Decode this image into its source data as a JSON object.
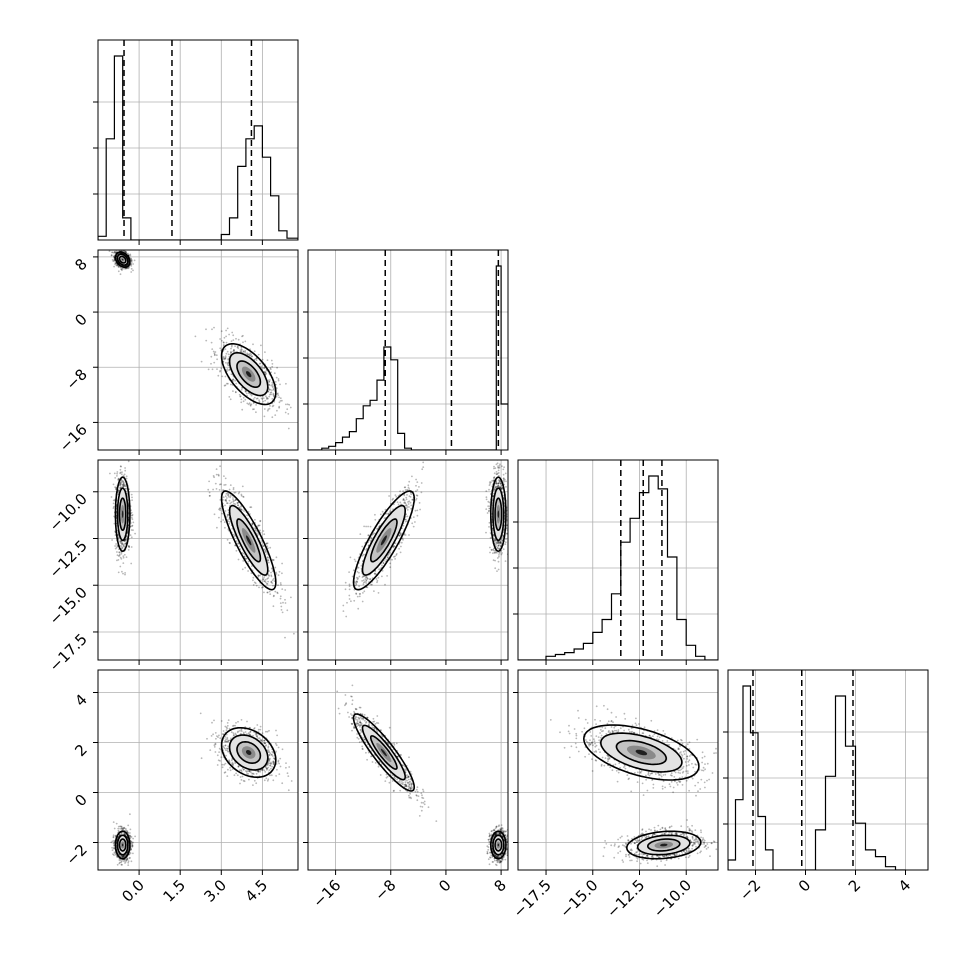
{
  "chart_data": {
    "type": "corner",
    "grid": true,
    "parameters": [
      {
        "ticks": [
          0.0,
          1.5,
          3.0,
          4.5
        ],
        "tick_labels": [
          "0.0",
          "1.5",
          "3.0",
          "4.5"
        ],
        "range": [
          -1.5,
          5.8
        ],
        "quantiles": [
          -0.55,
          1.2,
          4.1
        ],
        "hist": {
          "edges": [
            -1.5,
            -1.2,
            -0.9,
            -0.6,
            -0.3,
            0.0,
            0.3,
            2.7,
            3.0,
            3.3,
            3.6,
            3.9,
            4.2,
            4.5,
            4.8,
            5.1,
            5.4,
            5.8
          ],
          "counts": [
            0.02,
            0.55,
            1.0,
            0.12,
            0.0,
            0.0,
            0.0,
            0.0,
            0.03,
            0.12,
            0.4,
            0.55,
            0.62,
            0.45,
            0.24,
            0.05,
            0.01
          ]
        }
      },
      {
        "ticks": [
          -16,
          -8,
          0,
          8
        ],
        "tick_labels": [
          "−16",
          "−8",
          "0",
          "8"
        ],
        "range": [
          -20,
          9
        ],
        "quantiles": [
          -8.8,
          0.8,
          7.6
        ],
        "hist": {
          "edges": [
            -20,
            -19,
            -18,
            -17,
            -16,
            -15,
            -14,
            -13,
            -12,
            -11,
            -10,
            -9,
            -8,
            -7,
            -6,
            -5,
            -4,
            6.6,
            7.3,
            8.0,
            9.0
          ],
          "counts": [
            0.0,
            0.0,
            0.01,
            0.02,
            0.04,
            0.07,
            0.1,
            0.17,
            0.24,
            0.27,
            0.38,
            0.56,
            0.49,
            0.09,
            0.01,
            0.0,
            0.0,
            0.0,
            1.0,
            0.25
          ]
        }
      },
      {
        "ticks": [
          -17.5,
          -15.0,
          -12.5,
          -10.0
        ],
        "tick_labels": [
          "−17.5",
          "−15.0",
          "−12.5",
          "−10.0"
        ],
        "range": [
          -19,
          -8.3
        ],
        "quantiles": [
          -13.5,
          -12.3,
          -11.3
        ],
        "hist": {
          "edges": [
            -19,
            -18.5,
            -18,
            -17.5,
            -17,
            -16.5,
            -16,
            -15.5,
            -15,
            -14.5,
            -14,
            -13.5,
            -13,
            -12.5,
            -12,
            -11.5,
            -11,
            -10.5,
            -10,
            -9.5,
            -9,
            -8.3
          ],
          "counts": [
            0.0,
            0.0,
            0.0,
            0.02,
            0.03,
            0.04,
            0.06,
            0.09,
            0.15,
            0.22,
            0.36,
            0.64,
            0.77,
            0.91,
            1.0,
            0.93,
            0.56,
            0.22,
            0.08,
            0.02,
            0.0
          ]
        }
      },
      {
        "ticks": [
          -2,
          0,
          2,
          4
        ],
        "tick_labels": [
          "−2",
          "0",
          "2",
          "4"
        ],
        "range": [
          -3.1,
          4.9
        ],
        "quantiles": [
          -2.1,
          -0.15,
          1.9
        ],
        "hist": {
          "edges": [
            -3.1,
            -2.8,
            -2.5,
            -2.2,
            -1.9,
            -1.6,
            -1.3,
            -1.0,
            0.0,
            0.4,
            0.8,
            1.2,
            1.6,
            2.0,
            2.4,
            2.8,
            3.2,
            3.6,
            4.0
          ],
          "counts": [
            0.03,
            0.21,
            0.55,
            0.41,
            0.16,
            0.06,
            0.0,
            0.0,
            0.0,
            0.12,
            0.28,
            0.52,
            0.37,
            0.14,
            0.06,
            0.04,
            0.01,
            0.0
          ]
        }
      }
    ],
    "pair_modes": [
      {
        "i": 1,
        "j": 0,
        "modes": [
          {
            "mx": -0.6,
            "my": 7.6,
            "sx": 0.12,
            "sy": 0.5,
            "rho": -0.3,
            "w": 0.5
          },
          {
            "mx": 4.0,
            "my": -9.0,
            "sx": 0.45,
            "sy": 2.0,
            "rho": -0.6,
            "w": 0.5
          }
        ]
      },
      {
        "i": 2,
        "j": 0,
        "modes": [
          {
            "mx": -0.6,
            "my": -11.2,
            "sx": 0.12,
            "sy": 0.9,
            "rho": 0.0,
            "w": 0.5
          },
          {
            "mx": 4.0,
            "my": -12.6,
            "sx": 0.45,
            "sy": 1.2,
            "rho": -0.85,
            "w": 0.5
          }
        ]
      },
      {
        "i": 2,
        "j": 1,
        "modes": [
          {
            "mx": -9.0,
            "my": -12.6,
            "sx": 2.0,
            "sy": 1.2,
            "rho": 0.85,
            "w": 0.5
          },
          {
            "mx": 7.6,
            "my": -11.2,
            "sx": 0.5,
            "sy": 0.9,
            "rho": 0.0,
            "w": 0.5
          }
        ]
      },
      {
        "i": 3,
        "j": 0,
        "modes": [
          {
            "mx": -0.6,
            "my": -2.1,
            "sx": 0.12,
            "sy": 0.25,
            "rho": 0.0,
            "w": 0.5
          },
          {
            "mx": 4.0,
            "my": 1.6,
            "sx": 0.45,
            "sy": 0.45,
            "rho": -0.3,
            "w": 0.5
          }
        ]
      },
      {
        "i": 3,
        "j": 1,
        "modes": [
          {
            "mx": -9.0,
            "my": 1.6,
            "sx": 2.0,
            "sy": 0.7,
            "rho": -0.9,
            "w": 0.5
          },
          {
            "mx": 7.6,
            "my": -2.1,
            "sx": 0.5,
            "sy": 0.25,
            "rho": 0.0,
            "w": 0.5
          }
        ]
      },
      {
        "i": 3,
        "j": 2,
        "modes": [
          {
            "mx": -12.4,
            "my": 1.6,
            "sx": 1.4,
            "sy": 0.5,
            "rho": -0.5,
            "w": 0.5
          },
          {
            "mx": -11.2,
            "my": -2.1,
            "sx": 0.9,
            "sy": 0.25,
            "rho": 0.2,
            "w": 0.5
          }
        ]
      }
    ]
  }
}
